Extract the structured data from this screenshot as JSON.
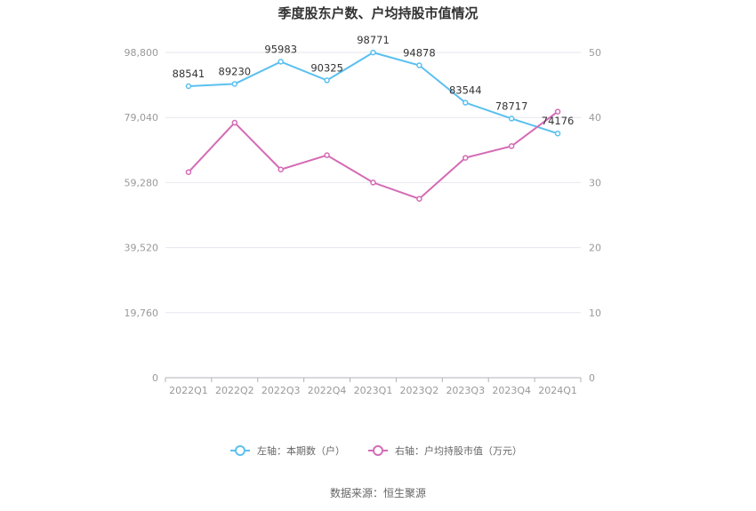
{
  "title": "季度股东户数、户均持股市值情况",
  "source": "数据来源：恒生聚源",
  "chart_data": {
    "type": "line",
    "categories": [
      "2022Q1",
      "2022Q2",
      "2022Q3",
      "2022Q4",
      "2023Q1",
      "2023Q2",
      "2023Q3",
      "2023Q4",
      "2024Q1"
    ],
    "y_left": {
      "ticks": [
        "0",
        "19,760",
        "39,520",
        "59,280",
        "79,040",
        "98,800"
      ],
      "ylim": [
        0,
        98800
      ]
    },
    "y_right": {
      "ticks": [
        "0",
        "10",
        "20",
        "30",
        "40",
        "50"
      ],
      "ylim": [
        0,
        50
      ]
    },
    "grid": true,
    "legend_position": "bottom",
    "series": [
      {
        "name": "左轴：本期数（户）",
        "axis": "left",
        "color": "#5bc0ef",
        "values": [
          88541,
          89230,
          95983,
          90325,
          98771,
          94878,
          83544,
          78717,
          74176
        ],
        "labels": [
          "88541",
          "89230",
          "95983",
          "90325",
          "98771",
          "94878",
          "83544",
          "78717",
          "74176"
        ]
      },
      {
        "name": "右轴：户均持股市值（万元）",
        "axis": "right",
        "color": "#d46bb5",
        "values": [
          31.6,
          39.2,
          32.0,
          34.2,
          30.0,
          27.5,
          33.8,
          35.6,
          40.9
        ],
        "labels": []
      }
    ]
  }
}
